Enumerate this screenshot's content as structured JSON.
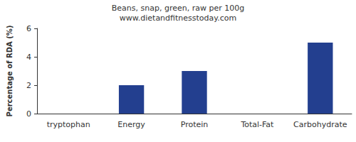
{
  "chart_data": {
    "type": "bar",
    "title": "Beans, snap, green, raw per 100g",
    "subtitle": "www.dietandfitnesstoday.com",
    "y_label": "Percentage of RDA (%)",
    "categories": [
      "tryptophan",
      "Energy",
      "Protein",
      "Total-Fat",
      "Carbohydrate"
    ],
    "values": [
      0,
      2,
      3,
      0,
      5
    ],
    "color": "#233f8f",
    "ylim": [
      0,
      6
    ],
    "yticks": [
      0,
      2,
      4,
      6
    ],
    "grid": false
  }
}
